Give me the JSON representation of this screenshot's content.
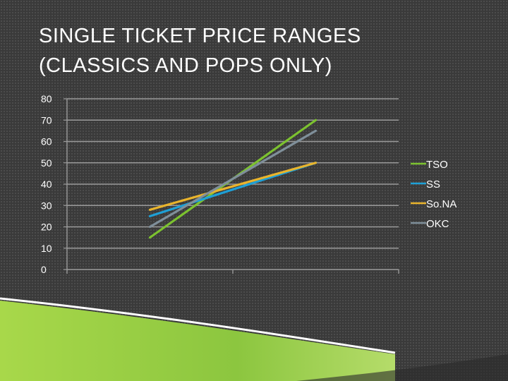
{
  "title": {
    "line1": "SINGLE TICKET PRICE RANGES",
    "line2": "(CLASSICS AND POPS ONLY)"
  },
  "chart_data": {
    "type": "line",
    "title": "SINGLE TICKET PRICE RANGES (CLASSICS AND POPS ONLY)",
    "categories": [
      "",
      ""
    ],
    "ylim": [
      0,
      80
    ],
    "yticks": [
      0,
      10,
      20,
      30,
      40,
      50,
      60,
      70,
      80
    ],
    "grid": true,
    "legend_position": "right",
    "series": [
      {
        "name": "TSO",
        "values": [
          15,
          70
        ],
        "color": "#7cc22f"
      },
      {
        "name": "SS",
        "values": [
          25,
          50
        ],
        "color": "#1ea0d6"
      },
      {
        "name": "So.NA",
        "values": [
          28,
          50
        ],
        "color": "#e9b42c"
      },
      {
        "name": "OKC",
        "values": [
          20,
          65
        ],
        "color": "#7f8f9a"
      }
    ]
  },
  "colors": {
    "background": "#3a3a3a",
    "gridline": "#9a9a9a",
    "axis_text": "#ffffff",
    "accent_green": "#8dc63f"
  }
}
